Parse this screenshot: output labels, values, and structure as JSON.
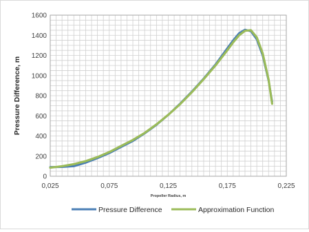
{
  "chart_data": {
    "type": "line",
    "xlabel": "Propeller Radius, m",
    "ylabel": "Pressure Difference, m",
    "xlim": [
      0.025,
      0.225
    ],
    "ylim": [
      0,
      1600
    ],
    "x_ticks": [
      "0,025",
      "0,075",
      "0,125",
      "0,175",
      "0,225"
    ],
    "y_ticks": [
      "0",
      "200",
      "400",
      "600",
      "800",
      "1000",
      "1200",
      "1400",
      "1600"
    ],
    "grid": true,
    "legend_position": "bottom",
    "series": [
      {
        "name": "Pressure Difference",
        "color": "#4a7eb5",
        "x": [
          0.025,
          0.035,
          0.045,
          0.055,
          0.065,
          0.075,
          0.085,
          0.095,
          0.105,
          0.115,
          0.125,
          0.135,
          0.145,
          0.155,
          0.165,
          0.175,
          0.18,
          0.185,
          0.19,
          0.195,
          0.2,
          0.205,
          0.21,
          0.213
        ],
        "y": [
          90,
          92,
          100,
          135,
          180,
          230,
          290,
          350,
          425,
          510,
          610,
          720,
          840,
          970,
          1110,
          1270,
          1350,
          1420,
          1455,
          1440,
          1360,
          1200,
          950,
          740
        ]
      },
      {
        "name": "Approximation Function",
        "color": "#9bbb59",
        "x": [
          0.025,
          0.035,
          0.045,
          0.055,
          0.065,
          0.075,
          0.085,
          0.095,
          0.105,
          0.115,
          0.125,
          0.135,
          0.145,
          0.155,
          0.165,
          0.175,
          0.18,
          0.185,
          0.19,
          0.195,
          0.2,
          0.205,
          0.21,
          0.213
        ],
        "y": [
          85,
          100,
          120,
          150,
          190,
          240,
          300,
          360,
          430,
          515,
          610,
          715,
          835,
          965,
          1100,
          1250,
          1330,
          1400,
          1445,
          1450,
          1380,
          1220,
          960,
          720
        ]
      }
    ]
  }
}
